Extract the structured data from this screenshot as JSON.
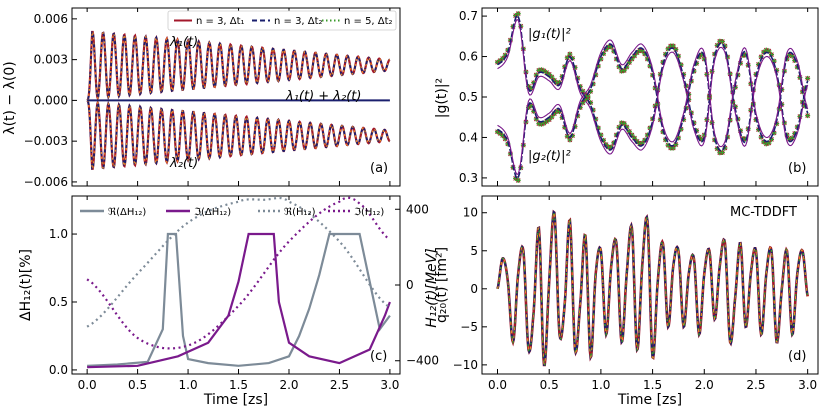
{
  "colors": {
    "red": "#a3182b",
    "navy": "#1a1f6e",
    "green": "#3a9a2a",
    "orange": "#f08a24",
    "purple": "#7a1a8c",
    "gray": "#7d8b98",
    "teal": "#3a7fa0"
  },
  "chart_data": [
    {
      "panel": "a",
      "type": "line",
      "ylabel": "λ(t) − λ(0)",
      "xlim": [
        -0.15,
        3.1
      ],
      "ylim": [
        -0.0063,
        0.0068
      ],
      "yticks": [
        -0.006,
        -0.003,
        0.0,
        0.003,
        0.006
      ],
      "ytick_labels": [
        "−0.006",
        "−0.003",
        "0.000",
        "0.003",
        "0.006"
      ],
      "legend": [
        "n = 3, Δt₁",
        "n = 3, Δt₂",
        "n = 5, Δt₂"
      ],
      "annotations": [
        "λ₁(t)",
        "λ₁(t) + λ₂(t)",
        "λ₂(t)"
      ],
      "tag": "(a)",
      "series": [
        {
          "name": "λ₁(t)",
          "mean": 0.0026,
          "amp_start": 0.0025,
          "amp_end": 0.0004,
          "frequency": 9.5
        },
        {
          "name": "λ₁(t) + λ₂(t)",
          "constant": 0.0
        },
        {
          "name": "λ₂(t)",
          "mean": -0.0026,
          "amp_start": 0.0025,
          "amp_end": 0.0004,
          "frequency": 9.5
        }
      ]
    },
    {
      "panel": "b",
      "type": "line",
      "ylabel": "|g(t)|²",
      "xlim": [
        -0.15,
        3.1
      ],
      "ylim": [
        0.28,
        0.72
      ],
      "yticks": [
        0.3,
        0.4,
        0.5,
        0.6,
        0.7
      ],
      "ytick_labels": [
        "0.3",
        "0.4",
        "0.5",
        "0.6",
        "0.7"
      ],
      "annotations": [
        "|g₁(t)|²",
        "|g₂(t)|²"
      ],
      "tag": "(b)",
      "series": [
        {
          "name": "|g₁(t)|²",
          "x": [
            0,
            0.1,
            0.2,
            0.3,
            0.4,
            0.5,
            0.6,
            0.7,
            0.8,
            0.9,
            1.0,
            1.1,
            1.2,
            1.3,
            1.4,
            1.5,
            1.6,
            1.7,
            1.8,
            1.9,
            2.0,
            2.1,
            2.2,
            2.3,
            2.4,
            2.5,
            2.6,
            2.7,
            2.8,
            2.9,
            3.0
          ],
          "y": [
            0.58,
            0.61,
            0.7,
            0.52,
            0.56,
            0.55,
            0.53,
            0.6,
            0.52,
            0.48,
            0.4,
            0.37,
            0.43,
            0.4,
            0.38,
            0.44,
            0.58,
            0.62,
            0.55,
            0.43,
            0.4,
            0.6,
            0.62,
            0.47,
            0.39,
            0.55,
            0.61,
            0.56,
            0.4,
            0.42,
            0.54
          ]
        },
        {
          "name": "|g₂(t)|²",
          "x": [
            0,
            0.1,
            0.2,
            0.3,
            0.4,
            0.5,
            0.6,
            0.7,
            0.8,
            0.9,
            1.0,
            1.1,
            1.2,
            1.3,
            1.4,
            1.5,
            1.6,
            1.7,
            1.8,
            1.9,
            2.0,
            2.1,
            2.2,
            2.3,
            2.4,
            2.5,
            2.6,
            2.7,
            2.8,
            2.9,
            3.0
          ],
          "y": [
            0.42,
            0.39,
            0.3,
            0.48,
            0.44,
            0.45,
            0.47,
            0.4,
            0.48,
            0.52,
            0.6,
            0.63,
            0.57,
            0.6,
            0.62,
            0.56,
            0.42,
            0.38,
            0.45,
            0.57,
            0.6,
            0.4,
            0.38,
            0.53,
            0.61,
            0.45,
            0.39,
            0.44,
            0.6,
            0.58,
            0.46
          ]
        }
      ]
    },
    {
      "panel": "c",
      "type": "line",
      "ylabel": "ΔH₁₂(t)[%]",
      "ylabel_right": "H₁₂(t)[MeV]",
      "xlabel": "Time [zs]",
      "xlim": [
        -0.15,
        3.1
      ],
      "ylim": [
        -0.03,
        1.28
      ],
      "yticks": [
        0.0,
        0.5,
        1.0
      ],
      "ytick_labels": [
        "0.0",
        "0.5",
        "1.0"
      ],
      "ylim_right": [
        -470,
        470
      ],
      "yticks_right": [
        -400,
        0,
        400
      ],
      "ytick_labels_right": [
        "−400",
        "0",
        "400"
      ],
      "xticks": [
        0.0,
        0.5,
        1.0,
        1.5,
        2.0,
        2.5,
        3.0
      ],
      "xtick_labels": [
        "0.0",
        "0.5",
        "1.0",
        "1.5",
        "2.0",
        "2.5",
        "3.0"
      ],
      "legend": [
        "ℜ(ΔH₁₂)",
        "ℑ(ΔH₁₂)",
        "ℜ(H₁₂)",
        "ℑ(H₁₂)"
      ],
      "tag": "(c)",
      "series": [
        {
          "name": "ℜ(ΔH₁₂)",
          "x": [
            0,
            0.3,
            0.6,
            0.75,
            0.8,
            0.88,
            0.95,
            1.0,
            1.2,
            1.5,
            1.8,
            2.0,
            2.1,
            2.2,
            2.3,
            2.4,
            2.5,
            2.7,
            2.8,
            2.9,
            3.0
          ],
          "y": [
            0.03,
            0.04,
            0.06,
            0.3,
            1.0,
            1.0,
            0.25,
            0.08,
            0.05,
            0.03,
            0.05,
            0.1,
            0.25,
            0.45,
            0.7,
            1.0,
            1.0,
            1.0,
            0.65,
            0.3,
            0.4
          ]
        },
        {
          "name": "ℑ(ΔH₁₂)",
          "x": [
            0,
            0.5,
            0.9,
            1.2,
            1.4,
            1.5,
            1.6,
            1.75,
            1.85,
            1.9,
            2.0,
            2.2,
            2.5,
            2.8,
            2.95,
            3.0
          ],
          "y": [
            0.02,
            0.03,
            0.1,
            0.2,
            0.4,
            0.65,
            1.0,
            1.0,
            1.0,
            0.5,
            0.2,
            0.1,
            0.05,
            0.15,
            0.4,
            0.5
          ]
        },
        {
          "name": "ℜ(H₁₂)",
          "axis": "right",
          "x": [
            0,
            0.5,
            1.0,
            1.5,
            1.75,
            2.0,
            2.5,
            3.0
          ],
          "y": [
            -220,
            60,
            330,
            440,
            450,
            440,
            230,
            -120
          ]
        },
        {
          "name": "ℑ(H₁₂)",
          "axis": "right",
          "x": [
            0,
            0.5,
            1.0,
            1.5,
            2.0,
            2.5,
            2.7,
            3.0
          ],
          "y": [
            30,
            -280,
            -320,
            -110,
            230,
            440,
            430,
            240
          ]
        }
      ]
    },
    {
      "panel": "d",
      "type": "line",
      "ylabel": "q₂₀(t) [fm²]",
      "xlabel": "Time [zs]",
      "xlim": [
        -0.15,
        3.1
      ],
      "ylim": [
        -11.2,
        12.2
      ],
      "yticks": [
        -10,
        -5,
        0,
        5,
        10
      ],
      "ytick_labels": [
        "−10",
        "−5",
        "0",
        "5",
        "10"
      ],
      "xticks": [
        0.0,
        0.5,
        1.0,
        1.5,
        2.0,
        2.5,
        3.0
      ],
      "xtick_labels": [
        "0.0",
        "0.5",
        "1.0",
        "1.5",
        "2.0",
        "2.5",
        "3.0"
      ],
      "title": "MC-TDDFT",
      "tag": "(d)",
      "series": [
        {
          "name": "q₂₀(t)",
          "x": [
            0,
            0.05,
            0.1,
            0.15,
            0.2,
            0.25,
            0.3,
            0.35,
            0.4,
            0.45,
            0.5,
            0.55,
            0.6,
            0.65,
            0.7,
            0.75,
            0.8,
            0.85,
            0.9,
            0.95,
            1.0,
            1.05,
            1.1,
            1.15,
            1.2,
            1.25,
            1.3,
            1.35,
            1.4,
            1.45,
            1.5,
            1.55,
            1.6,
            1.65,
            1.7,
            1.75,
            1.8,
            1.85,
            1.9,
            1.95,
            2.0,
            2.05,
            2.1,
            2.15,
            2.2,
            2.25,
            2.3,
            2.35,
            2.4,
            2.45,
            2.5,
            2.55,
            2.6,
            2.65,
            2.7,
            2.75,
            2.8,
            2.85,
            2.9,
            2.95,
            3.0
          ],
          "y": [
            0,
            4,
            1,
            -7,
            2,
            5,
            -8,
            -3,
            8,
            -10,
            1,
            10,
            -6,
            -2,
            9,
            -8,
            -2,
            7,
            -9,
            2,
            5,
            -6,
            3,
            6,
            -7,
            2,
            8,
            -8,
            3,
            9,
            -9,
            1,
            6,
            -5,
            3,
            5,
            -5,
            2,
            4,
            -6,
            2,
            5,
            -4,
            3,
            6,
            -7,
            -1,
            6,
            -5,
            2,
            5,
            -6,
            2,
            5,
            -7,
            0,
            5,
            -6,
            2,
            5,
            -1
          ]
        }
      ]
    }
  ]
}
